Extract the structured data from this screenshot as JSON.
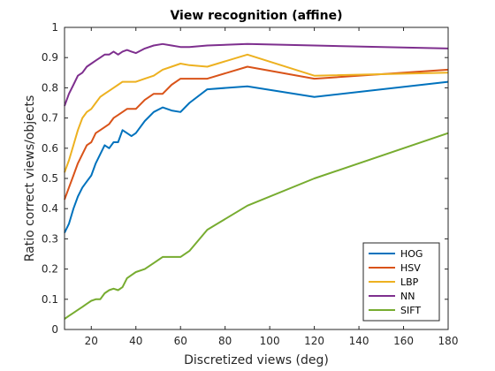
{
  "chart_data": {
    "type": "line",
    "title": "View recognition (affine)",
    "xlabel": "Discretized views (deg)",
    "ylabel": "Ratio correct views/objects",
    "xlim": [
      8,
      180
    ],
    "ylim": [
      0,
      1
    ],
    "xticks": [
      20,
      40,
      60,
      80,
      100,
      120,
      140,
      160,
      180
    ],
    "xtick_labels": [
      "20",
      "40",
      "60",
      "80",
      "100",
      "120",
      "140",
      "160",
      "180"
    ],
    "yticks": [
      0,
      0.1,
      0.2,
      0.3,
      0.4,
      0.5,
      0.6,
      0.7,
      0.8,
      0.9,
      1
    ],
    "ytick_labels": [
      "0",
      "0.1",
      "0.2",
      "0.3",
      "0.4",
      "0.5",
      "0.6",
      "0.7",
      "0.8",
      "0.9",
      "1"
    ],
    "grid": false,
    "legend_position": "bottom-right",
    "series": [
      {
        "name": "HOG",
        "color": "#0072BD",
        "points": [
          [
            8,
            0.32
          ],
          [
            10,
            0.35
          ],
          [
            12,
            0.4
          ],
          [
            14,
            0.44
          ],
          [
            16,
            0.47
          ],
          [
            18,
            0.49
          ],
          [
            20,
            0.51
          ],
          [
            22,
            0.55
          ],
          [
            24,
            0.58
          ],
          [
            26,
            0.61
          ],
          [
            28,
            0.6
          ],
          [
            30,
            0.62
          ],
          [
            32,
            0.62
          ],
          [
            34,
            0.66
          ],
          [
            36,
            0.65
          ],
          [
            38,
            0.64
          ],
          [
            40,
            0.65
          ],
          [
            44,
            0.69
          ],
          [
            48,
            0.72
          ],
          [
            52,
            0.735
          ],
          [
            56,
            0.725
          ],
          [
            60,
            0.72
          ],
          [
            64,
            0.75
          ],
          [
            72,
            0.795
          ],
          [
            90,
            0.805
          ],
          [
            120,
            0.77
          ],
          [
            180,
            0.82
          ]
        ]
      },
      {
        "name": "HSV",
        "color": "#D95319",
        "points": [
          [
            8,
            0.43
          ],
          [
            10,
            0.47
          ],
          [
            12,
            0.51
          ],
          [
            14,
            0.55
          ],
          [
            16,
            0.58
          ],
          [
            18,
            0.61
          ],
          [
            20,
            0.62
          ],
          [
            22,
            0.65
          ],
          [
            24,
            0.66
          ],
          [
            26,
            0.67
          ],
          [
            28,
            0.68
          ],
          [
            30,
            0.7
          ],
          [
            32,
            0.71
          ],
          [
            34,
            0.72
          ],
          [
            36,
            0.73
          ],
          [
            38,
            0.73
          ],
          [
            40,
            0.73
          ],
          [
            44,
            0.76
          ],
          [
            48,
            0.78
          ],
          [
            52,
            0.78
          ],
          [
            56,
            0.81
          ],
          [
            60,
            0.83
          ],
          [
            64,
            0.83
          ],
          [
            72,
            0.83
          ],
          [
            90,
            0.87
          ],
          [
            120,
            0.83
          ],
          [
            180,
            0.86
          ]
        ]
      },
      {
        "name": "LBP",
        "color": "#EDB120",
        "points": [
          [
            8,
            0.52
          ],
          [
            10,
            0.56
          ],
          [
            12,
            0.61
          ],
          [
            14,
            0.66
          ],
          [
            16,
            0.7
          ],
          [
            18,
            0.72
          ],
          [
            20,
            0.73
          ],
          [
            22,
            0.75
          ],
          [
            24,
            0.77
          ],
          [
            26,
            0.78
          ],
          [
            28,
            0.79
          ],
          [
            30,
            0.8
          ],
          [
            32,
            0.81
          ],
          [
            34,
            0.82
          ],
          [
            36,
            0.82
          ],
          [
            38,
            0.82
          ],
          [
            40,
            0.82
          ],
          [
            44,
            0.83
          ],
          [
            48,
            0.84
          ],
          [
            52,
            0.86
          ],
          [
            56,
            0.87
          ],
          [
            60,
            0.88
          ],
          [
            64,
            0.875
          ],
          [
            72,
            0.87
          ],
          [
            90,
            0.91
          ],
          [
            120,
            0.84
          ],
          [
            180,
            0.85
          ]
        ]
      },
      {
        "name": "NN",
        "color": "#7E2F8E",
        "points": [
          [
            8,
            0.74
          ],
          [
            10,
            0.78
          ],
          [
            12,
            0.81
          ],
          [
            14,
            0.84
          ],
          [
            16,
            0.85
          ],
          [
            18,
            0.87
          ],
          [
            20,
            0.88
          ],
          [
            22,
            0.89
          ],
          [
            24,
            0.9
          ],
          [
            26,
            0.91
          ],
          [
            28,
            0.91
          ],
          [
            30,
            0.92
          ],
          [
            32,
            0.91
          ],
          [
            34,
            0.92
          ],
          [
            36,
            0.925
          ],
          [
            38,
            0.92
          ],
          [
            40,
            0.915
          ],
          [
            44,
            0.93
          ],
          [
            48,
            0.94
          ],
          [
            52,
            0.945
          ],
          [
            56,
            0.94
          ],
          [
            60,
            0.935
          ],
          [
            64,
            0.935
          ],
          [
            72,
            0.94
          ],
          [
            90,
            0.945
          ],
          [
            120,
            0.94
          ],
          [
            180,
            0.93
          ]
        ]
      },
      {
        "name": "SIFT",
        "color": "#77AC30",
        "points": [
          [
            8,
            0.035
          ],
          [
            10,
            0.045
          ],
          [
            12,
            0.055
          ],
          [
            14,
            0.065
          ],
          [
            16,
            0.075
          ],
          [
            18,
            0.085
          ],
          [
            20,
            0.095
          ],
          [
            22,
            0.1
          ],
          [
            24,
            0.1
          ],
          [
            26,
            0.12
          ],
          [
            28,
            0.13
          ],
          [
            30,
            0.135
          ],
          [
            32,
            0.13
          ],
          [
            34,
            0.14
          ],
          [
            36,
            0.17
          ],
          [
            38,
            0.18
          ],
          [
            40,
            0.19
          ],
          [
            44,
            0.2
          ],
          [
            48,
            0.22
          ],
          [
            52,
            0.24
          ],
          [
            56,
            0.24
          ],
          [
            60,
            0.24
          ],
          [
            64,
            0.26
          ],
          [
            72,
            0.33
          ],
          [
            90,
            0.41
          ],
          [
            120,
            0.5
          ],
          [
            180,
            0.65
          ]
        ]
      }
    ]
  }
}
